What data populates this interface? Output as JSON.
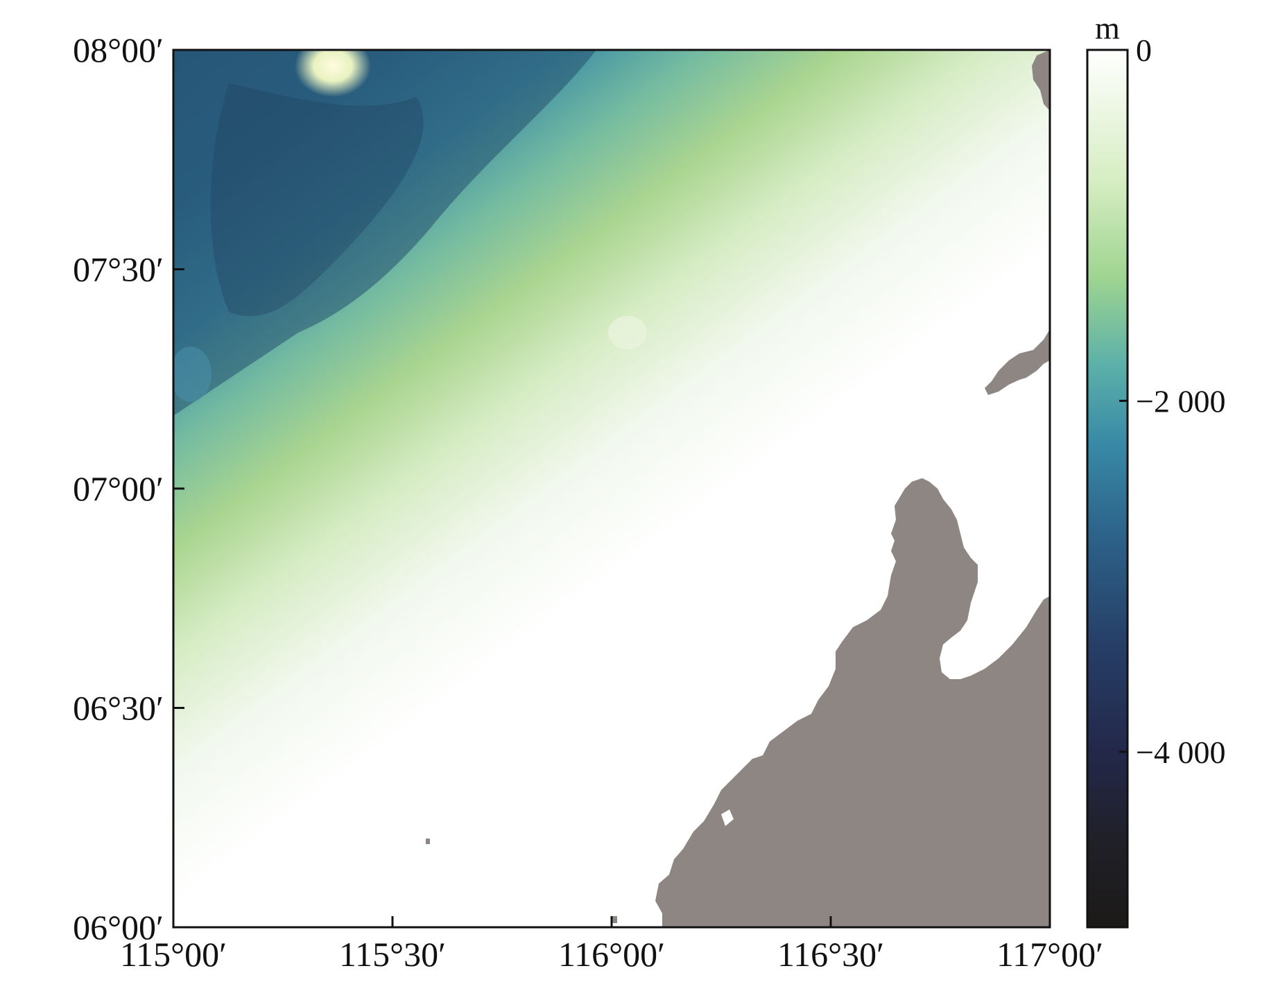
{
  "map": {
    "lat_labels": [
      "08°00′",
      "07°30′",
      "07°00′",
      "06°30′",
      "06°00′"
    ],
    "lon_labels": [
      "115°00′",
      "115°30′",
      "116°00′",
      "116°30′",
      "117°00′"
    ],
    "lat_values": [
      8.0,
      7.5,
      7.0,
      6.5,
      6.0
    ],
    "lon_values": [
      115.0,
      115.5,
      116.0,
      116.5,
      117.0
    ],
    "extent": {
      "lon_min": 115.0,
      "lon_max": 117.0,
      "lat_min": 6.0,
      "lat_max": 8.0
    },
    "land_color": "#8e8682"
  },
  "colorbar": {
    "unit": "m",
    "ticks": [
      {
        "value": 0,
        "label": "0"
      },
      {
        "value": -2000,
        "label": "−2 000"
      },
      {
        "value": -4000,
        "label": "−4 000"
      }
    ],
    "range": [
      -5000,
      0
    ],
    "colors": [
      "#1c1a18",
      "#22233a",
      "#243558",
      "#2b5b83",
      "#3a86a6",
      "#5cb0a8",
      "#a7d592",
      "#dcefc9",
      "#ffffff"
    ]
  }
}
